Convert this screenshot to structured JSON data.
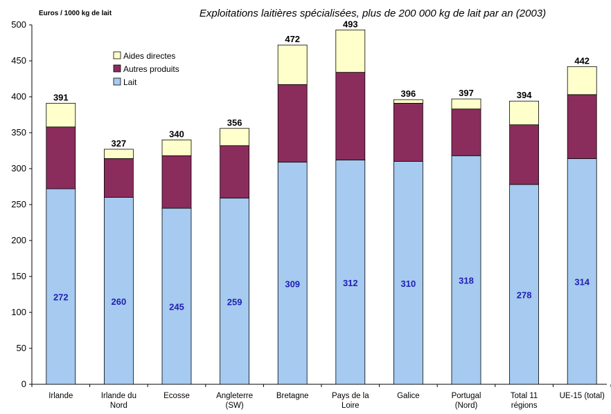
{
  "chart_data": {
    "type": "bar",
    "stacked": true,
    "title": "Exploitations laitières spécialisées, plus de 200 000 kg de lait par an (2003)",
    "ylabel": "Euros / 1000 kg de lait",
    "ylim": [
      0,
      500
    ],
    "yticks": [
      0,
      50,
      100,
      150,
      200,
      250,
      300,
      350,
      400,
      450,
      500
    ],
    "grid": false,
    "legend_position": "top-left",
    "categories": [
      [
        "Irlande"
      ],
      [
        "Irlande du",
        "Nord"
      ],
      [
        "Ecosse"
      ],
      [
        "Angleterre",
        "(SW)"
      ],
      [
        "Bretagne"
      ],
      [
        "Pays de la",
        "Loire"
      ],
      [
        "Galice"
      ],
      [
        "Portugal",
        "(Nord)"
      ],
      [
        "Total 11",
        "régions"
      ],
      [
        "UE-15 (total)"
      ]
    ],
    "series": [
      {
        "name": "Lait",
        "color": "#a6caf0",
        "values": [
          272,
          260,
          245,
          259,
          309,
          312,
          310,
          318,
          278,
          314
        ]
      },
      {
        "name": "Autres produits",
        "color": "#8b2d5c",
        "values": [
          86,
          54,
          73,
          73,
          108,
          122,
          81,
          65,
          83,
          89
        ]
      },
      {
        "name": "Aides directes",
        "color": "#ffffcc",
        "values": [
          33,
          13,
          22,
          24,
          55,
          59,
          5,
          14,
          33,
          39
        ]
      }
    ],
    "totals": [
      391,
      327,
      340,
      356,
      472,
      493,
      396,
      397,
      394,
      442
    ],
    "legend_order": [
      "Aides directes",
      "Autres produits",
      "Lait"
    ]
  }
}
